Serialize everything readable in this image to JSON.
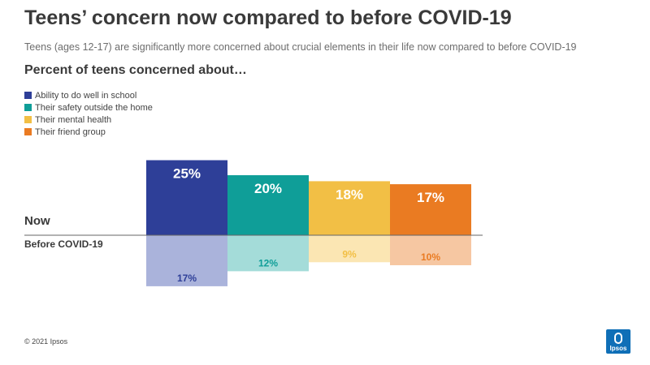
{
  "header": {
    "title": "Teens’ concern now compared to before COVID-19",
    "subtitle": "Teens (ages 12-17) are significantly more concerned about crucial elements in their life now compared to before COVID-19"
  },
  "chart_data": {
    "type": "bar",
    "title": "Percent of teens concerned about…",
    "categories": [
      "Ability to do well in school",
      "Their safety outside the home",
      "Their mental health",
      "Their friend group"
    ],
    "series": [
      {
        "name": "Now",
        "values": [
          25,
          20,
          18,
          17
        ],
        "labels": [
          "25%",
          "20%",
          "18%",
          "17%"
        ]
      },
      {
        "name": "Before COVID-19",
        "values": [
          17,
          12,
          9,
          10
        ],
        "labels": [
          "17%",
          "12%",
          "9%",
          "10%"
        ]
      }
    ],
    "colors_now": [
      "#2e3f98",
      "#0f9e98",
      "#f2bf45",
      "#ea7b22"
    ],
    "colors_before": [
      "#aab3db",
      "#a4dcd9",
      "#fbe6b3",
      "#f6c7a2"
    ],
    "label_colors_before": [
      "#2e3f98",
      "#0f9e98",
      "#f2bf45",
      "#ea7b22"
    ],
    "legend": "top-left",
    "grid": false
  },
  "footer": {
    "copyright": "© 2021 Ipsos",
    "logo_text": "Ipsos"
  }
}
